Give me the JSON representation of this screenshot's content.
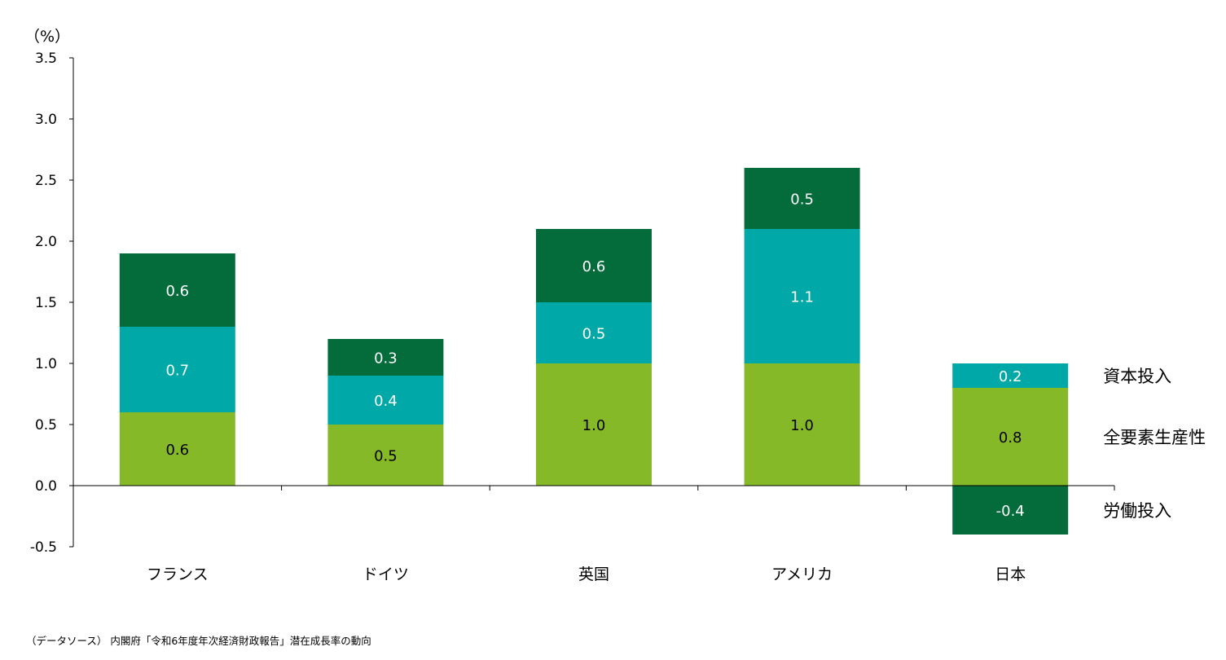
{
  "chart_data": {
    "type": "bar",
    "stacked": true,
    "unit_label": "（%）",
    "categories": [
      "フランス",
      "ドイツ",
      "英国",
      "アメリカ",
      "日本"
    ],
    "series": [
      {
        "name": "全要素生産性",
        "color": "#86b928",
        "values": [
          0.6,
          0.5,
          1.0,
          1.0,
          0.8
        ]
      },
      {
        "name": "資本投入",
        "color": "#00a9a8",
        "values": [
          0.7,
          0.4,
          0.5,
          1.1,
          0.2
        ]
      },
      {
        "name": "労働投入",
        "color": "#046c3a",
        "values": [
          0.6,
          0.3,
          0.6,
          0.5,
          -0.4
        ]
      }
    ],
    "ylim": [
      -0.5,
      3.5
    ],
    "yticks": [
      "-0.5",
      "0.0",
      "0.5",
      "1.0",
      "1.5",
      "2.0",
      "2.5",
      "3.0",
      "3.5"
    ],
    "legend": "right, labels beside the 日本 bar",
    "grid": false
  },
  "source": "（データソース） 内閣府「令和6年度年次経済財政報告」潜在成長率の動向"
}
